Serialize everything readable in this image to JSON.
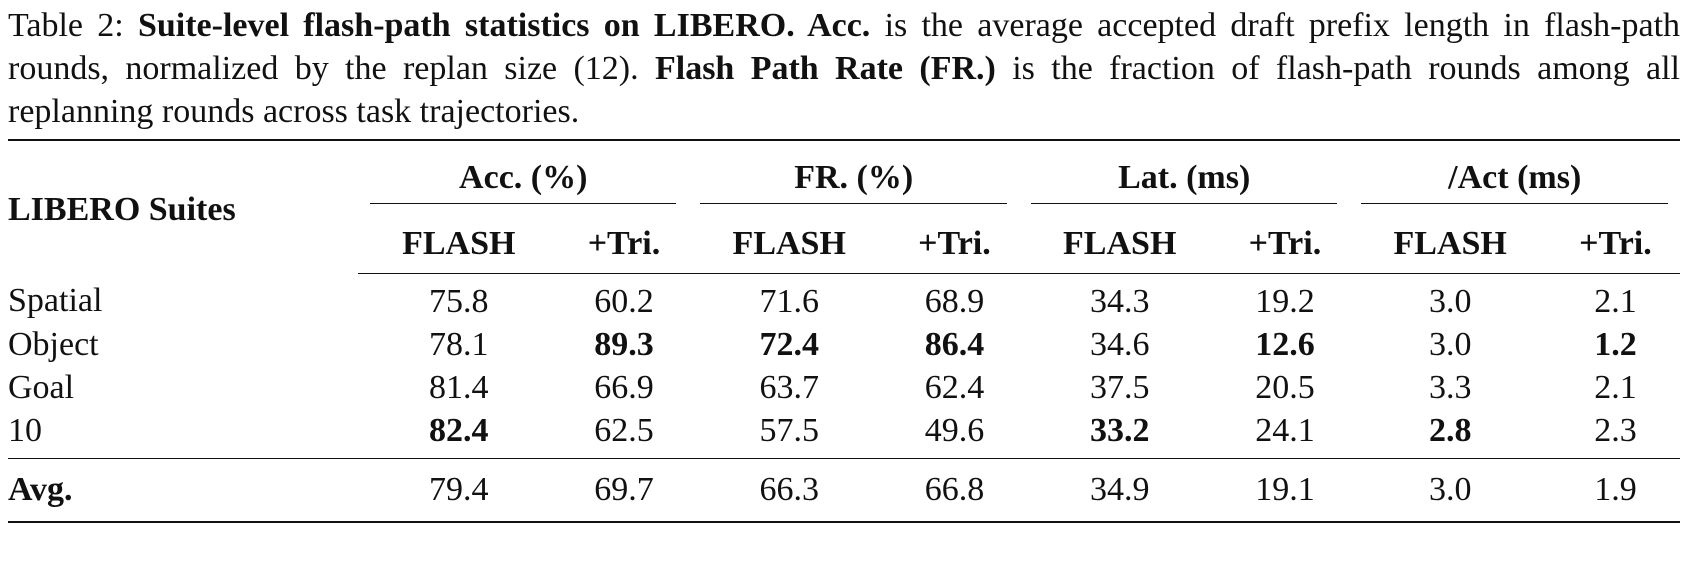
{
  "caption": {
    "label": "Table 2:",
    "parts": [
      {
        "text": "Suite-level flash-path statistics on LIBERO. Acc.",
        "bold": true
      },
      {
        "text": "is the average accepted draft prefix length in flash-path rounds, normalized by the replan size (12)."
      },
      {
        "text": "Flash Path Rate (FR.)",
        "bold": true
      },
      {
        "text": "is the fraction of flash-path rounds among all replanning rounds across task trajectories."
      }
    ]
  },
  "table": {
    "corner": "LIBERO Suites",
    "groups": [
      "Acc. (%)",
      "FR. (%)",
      "Lat. (ms)",
      "/Act (ms)"
    ],
    "subheaders": [
      "FLASH",
      "+Tri.",
      "FLASH",
      "+Tri.",
      "FLASH",
      "+Tri.",
      "FLASH",
      "+Tri."
    ],
    "rows": [
      {
        "label": "Spatial",
        "cells": [
          "75.8",
          "60.2",
          "71.6",
          "68.9",
          "34.3",
          "19.2",
          "3.0",
          "2.1"
        ]
      },
      {
        "label": "Object",
        "cells": [
          "78.1",
          {
            "text": "89.3",
            "bold": true
          },
          {
            "text": "72.4",
            "bold": true
          },
          {
            "text": "86.4",
            "bold": true
          },
          "34.6",
          {
            "text": "12.6",
            "bold": true
          },
          "3.0",
          {
            "text": "1.2",
            "bold": true
          }
        ]
      },
      {
        "label": "Goal",
        "cells": [
          "81.4",
          "66.9",
          "63.7",
          "62.4",
          "37.5",
          "20.5",
          "3.3",
          "2.1"
        ]
      },
      {
        "label": "10",
        "cells": [
          {
            "text": "82.4",
            "bold": true
          },
          "62.5",
          "57.5",
          "49.6",
          {
            "text": "33.2",
            "bold": true
          },
          "24.1",
          {
            "text": "2.8",
            "bold": true
          },
          "2.3"
        ]
      }
    ],
    "footer": {
      "label": "Avg.",
      "label_bold": true,
      "cells": [
        "79.4",
        "69.7",
        "66.3",
        "66.8",
        "34.9",
        "19.1",
        "3.0",
        "1.9"
      ]
    }
  }
}
